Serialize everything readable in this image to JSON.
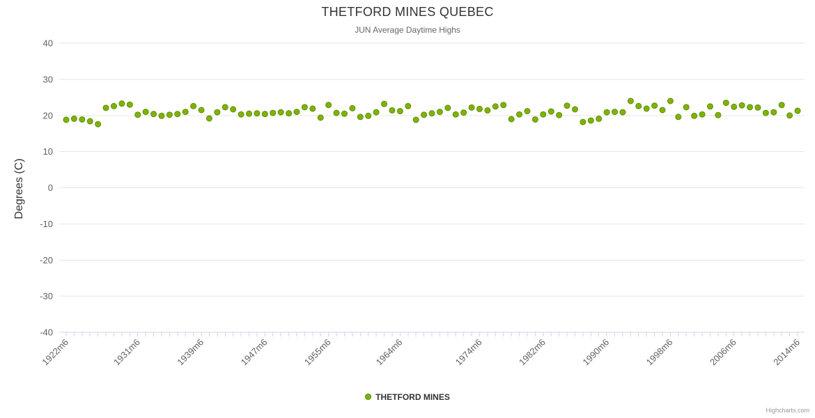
{
  "title": "THETFORD MINES QUEBEC",
  "subtitle": "JUN Average Daytime Highs",
  "credits": "Highcharts.com",
  "legend": {
    "label": "THETFORD MINES"
  },
  "colors": {
    "background": "#ffffff",
    "grid_line": "#e6e6e6",
    "axis_line": "#ccd6eb",
    "tick": "#ccd6eb",
    "axis_label": "#606060",
    "title": "#333333",
    "subtitle": "#666666",
    "point_fill": "#7db30a",
    "point_border": "#638e00",
    "legend_text": "#333333",
    "credits": "#999999"
  },
  "chart_data": {
    "type": "scatter",
    "title": "THETFORD MINES QUEBEC",
    "subtitle": "JUN Average Daytime Highs",
    "xlabel": "",
    "ylabel": "Degrees (C)",
    "ylim": [
      -40,
      40
    ],
    "y_ticks": [
      40,
      30,
      20,
      10,
      0,
      -10,
      -20,
      -30,
      -40
    ],
    "grid": true,
    "legend_position": "bottom",
    "x_tick_labels": [
      "1922m6",
      "1931m6",
      "1939m6",
      "1947m6",
      "1955m6",
      "1964m6",
      "1974m6",
      "1982m6",
      "1990m6",
      "1998m6",
      "2006m6",
      "2014m6"
    ],
    "categories": [
      "1922m6",
      "1923m6",
      "1924m6",
      "1925m6",
      "1926m6",
      "1927m6",
      "1928m6",
      "1929m6",
      "1930m6",
      "1931m6",
      "1932m6",
      "1933m6",
      "1934m6",
      "1935m6",
      "1936m6",
      "1937m6",
      "1938m6",
      "1939m6",
      "1940m6",
      "1941m6",
      "1942m6",
      "1943m6",
      "1944m6",
      "1945m6",
      "1946m6",
      "1947m6",
      "1948m6",
      "1949m6",
      "1950m6",
      "1951m6",
      "1952m6",
      "1953m6",
      "1954m6",
      "1955m6",
      "1956m6",
      "1957m6",
      "1958m6",
      "1959m6",
      "1960m6",
      "1961m6",
      "1962m6",
      "1963m6",
      "1964m6",
      "1965m6",
      "1966m6",
      "1967m6",
      "1968m6",
      "1969m6",
      "1970m6",
      "1971m6",
      "1972m6",
      "1973m6",
      "1974m6",
      "1975m6",
      "1976m6",
      "1977m6",
      "1978m6",
      "1979m6",
      "1980m6",
      "1981m6",
      "1982m6",
      "1983m6",
      "1984m6",
      "1985m6",
      "1986m6",
      "1987m6",
      "1988m6",
      "1989m6",
      "1990m6",
      "1991m6",
      "1992m6",
      "1993m6",
      "1994m6",
      "1995m6",
      "1996m6",
      "1997m6",
      "1998m6",
      "1999m6",
      "2000m6",
      "2001m6",
      "2002m6",
      "2003m6",
      "2004m6",
      "2005m6",
      "2006m6",
      "2007m6",
      "2008m6",
      "2009m6",
      "2010m6",
      "2011m6",
      "2012m6",
      "2013m6",
      "2014m6"
    ],
    "series": [
      {
        "name": "THETFORD MINES",
        "color": "#7db30a",
        "values": [
          18.8,
          19.1,
          18.9,
          18.4,
          17.6,
          22.1,
          22.6,
          23.3,
          23.0,
          20.2,
          21.0,
          20.4,
          19.9,
          20.2,
          20.4,
          21.0,
          22.6,
          21.5,
          19.2,
          20.9,
          22.3,
          21.7,
          20.3,
          20.5,
          20.6,
          20.4,
          20.7,
          20.9,
          20.6,
          21.0,
          22.3,
          21.9,
          19.4,
          22.9,
          20.7,
          20.5,
          22.0,
          19.6,
          19.9,
          20.9,
          23.2,
          21.4,
          21.2,
          22.6,
          18.8,
          20.2,
          20.6,
          21.0,
          22.1,
          20.3,
          20.8,
          22.2,
          21.8,
          21.4,
          22.5,
          22.9,
          19.0,
          20.3,
          21.2,
          18.9,
          20.3,
          21.1,
          20.1,
          22.7,
          21.7,
          18.2,
          18.6,
          19.1,
          20.9,
          21.0,
          20.9,
          24.0,
          22.6,
          21.9,
          22.7,
          21.5,
          24.0,
          19.6,
          22.3,
          19.9,
          20.3,
          22.5,
          20.1,
          23.5,
          22.4,
          22.8,
          22.3,
          22.2,
          20.7,
          20.9,
          22.9,
          20.0,
          21.3
        ]
      }
    ]
  }
}
